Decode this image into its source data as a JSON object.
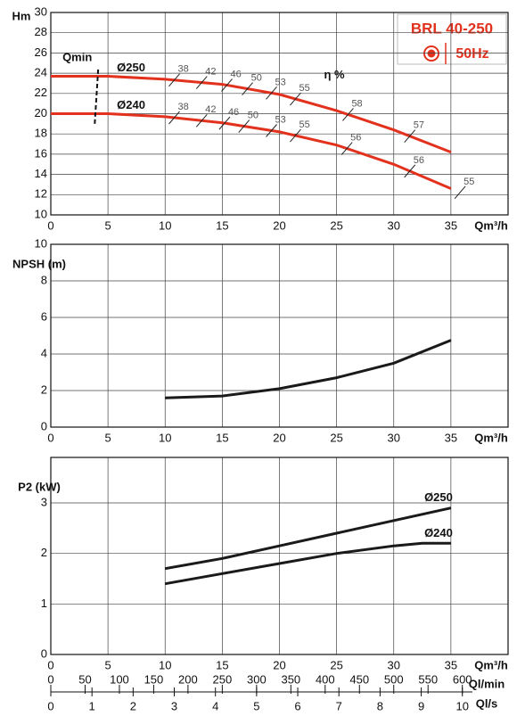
{
  "chart_data": [
    {
      "type": "line",
      "title": "BRL 40-250",
      "subtitle": "50Hz",
      "ylabel": "Hm",
      "xlabel": "Qm³/h",
      "xlim": [
        0,
        40
      ],
      "xticks": [
        0,
        5,
        10,
        15,
        20,
        25,
        30,
        35
      ],
      "ylim": [
        10,
        30
      ],
      "yticks": [
        10,
        12,
        14,
        16,
        18,
        20,
        22,
        24,
        26,
        28,
        30
      ],
      "grid": true,
      "qmin": {
        "label": "Qmin",
        "x": 4
      },
      "eta_label": "η %",
      "series": [
        {
          "name": "Ø250",
          "color": "#e2321e",
          "x": [
            0,
            5,
            10,
            15,
            20,
            25,
            30,
            35
          ],
          "values": [
            23.7,
            23.7,
            23.4,
            22.9,
            21.9,
            20.3,
            18.4,
            16.2
          ],
          "eta": {
            "x": [
              10.8,
              13.2,
              15.4,
              17.2,
              19.3,
              21.4,
              26,
              31.4
            ],
            "values": [
              38,
              42,
              46,
              50,
              53,
              55,
              58,
              57
            ]
          }
        },
        {
          "name": "Ø240",
          "color": "#e2321e",
          "x": [
            0,
            5,
            10,
            15,
            20,
            25,
            30,
            35
          ],
          "values": [
            20,
            20,
            19.7,
            19.1,
            18.2,
            16.9,
            15,
            12.6
          ],
          "eta": {
            "x": [
              10.8,
              13.2,
              15.2,
              16.9,
              19.3,
              21.4,
              25.9,
              31.4,
              35.8
            ],
            "values": [
              38,
              42,
              46,
              50,
              53,
              55,
              56,
              56,
              55
            ]
          }
        }
      ]
    },
    {
      "type": "line",
      "ylabel": "NPSH (m)",
      "xlabel": "Qm³/h",
      "xlim": [
        0,
        40
      ],
      "xticks": [
        0,
        5,
        10,
        15,
        20,
        25,
        30,
        35
      ],
      "ylim": [
        0,
        10
      ],
      "yticks": [
        0,
        2,
        4,
        6,
        8,
        10
      ],
      "grid": true,
      "series": [
        {
          "color": "#1a1a1a",
          "x": [
            10,
            15,
            20,
            25,
            30,
            35
          ],
          "values": [
            1.6,
            1.7,
            2.1,
            2.7,
            3.5,
            4.75
          ]
        }
      ]
    },
    {
      "type": "line",
      "ylabel": "P2 (kW)",
      "xlabel": "Qm³/h",
      "xlim": [
        0,
        40
      ],
      "xticks": [
        0,
        5,
        10,
        15,
        20,
        25,
        30,
        35
      ],
      "ylim": [
        0,
        3.9
      ],
      "yticks": [
        0,
        1,
        2,
        3
      ],
      "grid": true,
      "series": [
        {
          "name": "Ø250",
          "color": "#1a1a1a",
          "x": [
            10,
            15,
            20,
            25,
            30,
            35
          ],
          "values": [
            1.7,
            1.9,
            2.15,
            2.4,
            2.65,
            2.9
          ]
        },
        {
          "name": "Ø240",
          "color": "#1a1a1a",
          "x": [
            10,
            15,
            20,
            25,
            30,
            32.5,
            35
          ],
          "values": [
            1.4,
            1.6,
            1.8,
            2.0,
            2.15,
            2.2,
            2.2
          ]
        }
      ],
      "extra_axes": [
        {
          "label": "Ql/min",
          "lim": [
            0,
            666.67
          ],
          "ticks": [
            0,
            50,
            100,
            150,
            200,
            250,
            300,
            350,
            400,
            450,
            500,
            550,
            600
          ]
        },
        {
          "label": "Ql/s",
          "lim": [
            0,
            11.11
          ],
          "ticks": [
            0,
            1,
            2,
            3,
            4,
            5,
            6,
            7,
            8,
            9,
            10
          ]
        }
      ]
    }
  ]
}
